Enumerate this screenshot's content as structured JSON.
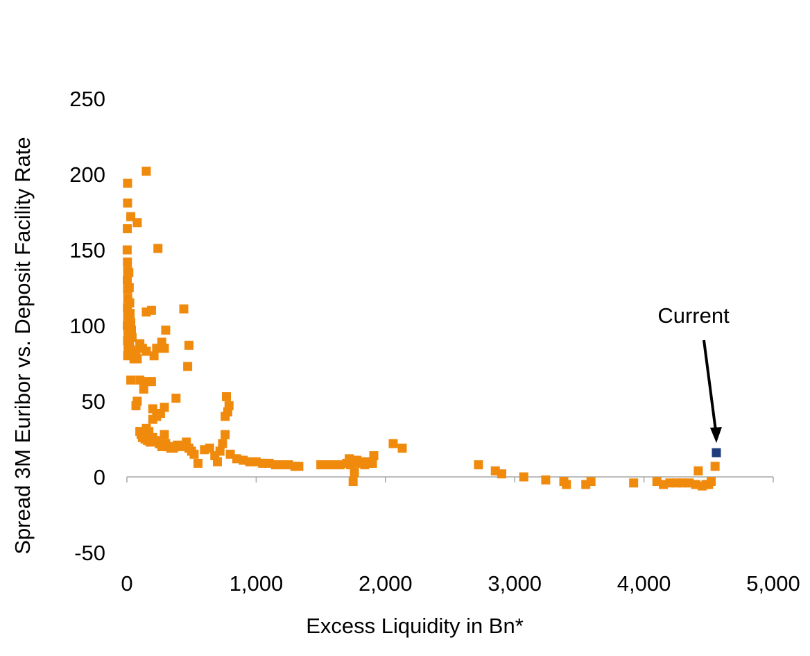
{
  "chart_data": {
    "type": "scatter",
    "xlabel": "Excess Liquidity in Bn*",
    "ylabel": "Spread 3M Euribor vs. Deposit Facility Rate",
    "xlim": [
      0,
      5000
    ],
    "ylim": [
      -50,
      250
    ],
    "x_ticks": [
      0,
      1000,
      2000,
      3000,
      4000,
      5000
    ],
    "x_tick_labels": [
      "0",
      "1,000",
      "2,000",
      "3,000",
      "4,000",
      "5,000"
    ],
    "y_ticks": [
      -50,
      0,
      50,
      100,
      150,
      200,
      250
    ],
    "y_tick_labels": [
      "-50",
      "0",
      "50",
      "100",
      "150",
      "200",
      "250"
    ],
    "grid": false,
    "colors": {
      "series": "#F08A0C",
      "current": "#1F3D7A",
      "axis": "#A6A6A6"
    },
    "annotation": {
      "text": "Current",
      "arrow_to": [
        4560,
        16
      ]
    },
    "series": [
      {
        "points": [
          [
            5,
            194
          ],
          [
            5,
            181
          ],
          [
            3,
            164
          ],
          [
            2,
            150
          ],
          [
            4,
            142
          ],
          [
            6,
            136
          ],
          [
            3,
            130
          ],
          [
            5,
            124
          ],
          [
            7,
            118
          ],
          [
            4,
            112
          ],
          [
            6,
            106
          ],
          [
            3,
            100
          ],
          [
            8,
            95
          ],
          [
            5,
            90
          ],
          [
            9,
            85
          ],
          [
            6,
            80
          ],
          [
            15,
            135
          ],
          [
            18,
            125
          ],
          [
            22,
            115
          ],
          [
            25,
            108
          ],
          [
            30,
            102
          ],
          [
            35,
            97
          ],
          [
            40,
            92
          ],
          [
            20,
            88
          ],
          [
            28,
            84
          ],
          [
            45,
            82
          ],
          [
            50,
            80
          ],
          [
            55,
            78
          ],
          [
            60,
            83
          ],
          [
            70,
            80
          ],
          [
            80,
            78
          ],
          [
            30,
            172
          ],
          [
            80,
            168
          ],
          [
            150,
            202
          ],
          [
            240,
            151
          ],
          [
            150,
            109
          ],
          [
            190,
            110
          ],
          [
            440,
            111
          ],
          [
            100,
            88
          ],
          [
            120,
            85
          ],
          [
            150,
            83
          ],
          [
            210,
            80
          ],
          [
            230,
            85
          ],
          [
            270,
            89
          ],
          [
            290,
            85
          ],
          [
            300,
            97
          ],
          [
            480,
            87
          ],
          [
            470,
            73
          ],
          [
            30,
            64
          ],
          [
            100,
            64
          ],
          [
            150,
            63
          ],
          [
            190,
            63
          ],
          [
            130,
            58
          ],
          [
            80,
            50
          ],
          [
            70,
            47
          ],
          [
            200,
            45
          ],
          [
            260,
            42
          ],
          [
            290,
            46
          ],
          [
            380,
            52
          ],
          [
            200,
            38
          ],
          [
            230,
            40
          ],
          [
            100,
            30
          ],
          [
            110,
            28
          ],
          [
            120,
            26
          ],
          [
            140,
            25
          ],
          [
            160,
            24
          ],
          [
            180,
            23
          ],
          [
            170,
            30
          ],
          [
            150,
            32
          ],
          [
            200,
            26
          ],
          [
            220,
            24
          ],
          [
            250,
            22
          ],
          [
            270,
            20
          ],
          [
            290,
            28
          ],
          [
            300,
            22
          ],
          [
            320,
            20
          ],
          [
            340,
            19
          ],
          [
            360,
            19
          ],
          [
            390,
            21
          ],
          [
            420,
            20
          ],
          [
            460,
            23
          ],
          [
            480,
            19
          ],
          [
            500,
            17
          ],
          [
            520,
            15
          ],
          [
            550,
            9
          ],
          [
            600,
            18
          ],
          [
            640,
            19
          ],
          [
            680,
            14
          ],
          [
            700,
            10
          ],
          [
            720,
            17
          ],
          [
            740,
            22
          ],
          [
            760,
            28
          ],
          [
            760,
            40
          ],
          [
            780,
            43
          ],
          [
            790,
            47
          ],
          [
            770,
            53
          ],
          [
            800,
            15
          ],
          [
            850,
            12
          ],
          [
            900,
            11
          ],
          [
            950,
            10
          ],
          [
            1000,
            10
          ],
          [
            1050,
            9
          ],
          [
            1100,
            9
          ],
          [
            1150,
            8
          ],
          [
            1200,
            8
          ],
          [
            1250,
            8
          ],
          [
            1300,
            7
          ],
          [
            1330,
            7
          ],
          [
            1500,
            8
          ],
          [
            1550,
            8
          ],
          [
            1600,
            8
          ],
          [
            1650,
            8
          ],
          [
            1700,
            9
          ],
          [
            1720,
            12
          ],
          [
            1730,
            8
          ],
          [
            1750,
            11
          ],
          [
            1760,
            9
          ],
          [
            1780,
            11
          ],
          [
            1800,
            10
          ],
          [
            1820,
            9
          ],
          [
            1840,
            8
          ],
          [
            1860,
            10
          ],
          [
            1880,
            9
          ],
          [
            1900,
            9
          ],
          [
            1910,
            14
          ],
          [
            1750,
            -3
          ],
          [
            1760,
            3
          ],
          [
            2060,
            22
          ],
          [
            2130,
            19
          ],
          [
            2720,
            8
          ],
          [
            2850,
            4
          ],
          [
            2900,
            2
          ],
          [
            3070,
            0
          ],
          [
            3240,
            -2
          ],
          [
            3380,
            -3
          ],
          [
            3400,
            -5
          ],
          [
            3550,
            -5
          ],
          [
            3590,
            -3
          ],
          [
            3920,
            -4
          ],
          [
            4100,
            -3
          ],
          [
            4150,
            -5
          ],
          [
            4200,
            -4
          ],
          [
            4250,
            -4
          ],
          [
            4300,
            -4
          ],
          [
            4350,
            -4
          ],
          [
            4400,
            -5
          ],
          [
            4450,
            -6
          ],
          [
            4480,
            -5
          ],
          [
            4500,
            -5
          ],
          [
            4520,
            -3
          ],
          [
            4420,
            4
          ],
          [
            4550,
            7
          ]
        ]
      },
      {
        "name": "Current",
        "points": [
          [
            4560,
            16
          ]
        ]
      }
    ]
  }
}
